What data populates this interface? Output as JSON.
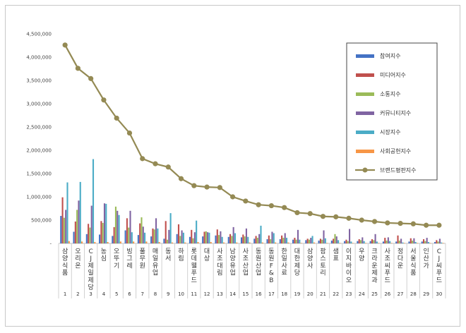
{
  "chart_data": {
    "type": "bar",
    "y_ticks": [
      "-",
      "500,000",
      "1,000,000",
      "1,500,000",
      "2,000,000",
      "2,500,000",
      "3,000,000",
      "3,500,000",
      "4,000,000",
      "4,500,000"
    ],
    "ylim": [
      0,
      4500000
    ],
    "legend_position": "right",
    "grid": false,
    "categories": [
      {
        "rank": "1",
        "name": "삼양식품"
      },
      {
        "rank": "2",
        "name": "오리온"
      },
      {
        "rank": "3",
        "name": "CJ제일제당"
      },
      {
        "rank": "4",
        "name": "농심"
      },
      {
        "rank": "5",
        "name": "오뚜기"
      },
      {
        "rank": "6",
        "name": "빙그레"
      },
      {
        "rank": "7",
        "name": "풀무원"
      },
      {
        "rank": "8",
        "name": "매일유업"
      },
      {
        "rank": "9",
        "name": "동서"
      },
      {
        "rank": "10",
        "name": "하림"
      },
      {
        "rank": "11",
        "name": "롯데웰푸드"
      },
      {
        "rank": "12",
        "name": "대상"
      },
      {
        "rank": "13",
        "name": "사조대림"
      },
      {
        "rank": "14",
        "name": "남양유업"
      },
      {
        "rank": "15",
        "name": "사조산업"
      },
      {
        "rank": "16",
        "name": "동원산업"
      },
      {
        "rank": "17",
        "name": "동원F&B"
      },
      {
        "rank": "18",
        "name": "한일사료"
      },
      {
        "rank": "19",
        "name": "대한제당"
      },
      {
        "rank": "20",
        "name": "삼양사"
      },
      {
        "rank": "21",
        "name": "팜스토리"
      },
      {
        "rank": "22",
        "name": "샘표"
      },
      {
        "rank": "23",
        "name": "이지바이오"
      },
      {
        "rank": "24",
        "name": "우양"
      },
      {
        "rank": "25",
        "name": "크라운제과"
      },
      {
        "rank": "26",
        "name": "사조씨푸드"
      },
      {
        "rank": "27",
        "name": "정다운"
      },
      {
        "rank": "28",
        "name": "서울식품"
      },
      {
        "rank": "29",
        "name": "인산가"
      },
      {
        "rank": "30",
        "name": "CJ씨푸드"
      }
    ],
    "series": [
      {
        "name": "참여지수",
        "color": "#4472c4",
        "values": [
          590000,
          250000,
          200000,
          190000,
          160000,
          280000,
          180000,
          150000,
          100000,
          200000,
          140000,
          150000,
          170000,
          140000,
          130000,
          100000,
          90000,
          90000,
          80000,
          70000,
          60000,
          60000,
          50000,
          50000,
          50000,
          40000,
          40000,
          40000,
          40000,
          30000
        ]
      },
      {
        "name": "미디어지수",
        "color": "#c0504d",
        "values": [
          990000,
          470000,
          420000,
          480000,
          350000,
          540000,
          430000,
          320000,
          480000,
          410000,
          290000,
          250000,
          300000,
          200000,
          190000,
          160000,
          170000,
          170000,
          120000,
          100000,
          100000,
          100000,
          80000,
          90000,
          90000,
          120000,
          170000,
          110000,
          90000,
          70000
        ]
      },
      {
        "name": "소통지수",
        "color": "#9bbb59",
        "values": [
          550000,
          720000,
          340000,
          440000,
          790000,
          340000,
          560000,
          300000,
          80000,
          160000,
          110000,
          260000,
          180000,
          160000,
          150000,
          120000,
          90000,
          120000,
          80000,
          80000,
          80000,
          200000,
          50000,
          70000,
          70000,
          60000,
          60000,
          60000,
          50000,
          40000
        ]
      },
      {
        "name": "커뮤니티지수",
        "color": "#8064a2",
        "values": [
          720000,
          920000,
          810000,
          860000,
          700000,
          700000,
          360000,
          540000,
          290000,
          280000,
          240000,
          240000,
          260000,
          350000,
          320000,
          200000,
          250000,
          220000,
          290000,
          120000,
          280000,
          150000,
          310000,
          130000,
          200000,
          130000,
          100000,
          110000,
          120000,
          100000
        ]
      },
      {
        "name": "시장지수",
        "color": "#4bacc6",
        "values": [
          1310000,
          1320000,
          1810000,
          850000,
          610000,
          240000,
          230000,
          320000,
          650000,
          230000,
          490000,
          230000,
          140000,
          220000,
          140000,
          380000,
          220000,
          120000,
          80000,
          160000,
          110000,
          70000,
          40000,
          50000,
          40000,
          50000,
          20000,
          30000,
          30000,
          20000
        ]
      },
      {
        "name": "사회공헌지수",
        "color": "#f79646",
        "values": [
          50000,
          40000,
          30000,
          30000,
          40000,
          40000,
          40000,
          30000,
          20000,
          20000,
          30000,
          30000,
          20000,
          20000,
          20000,
          20000,
          20000,
          20000,
          10000,
          20000,
          10000,
          10000,
          10000,
          10000,
          10000,
          10000,
          10000,
          10000,
          10000,
          10000
        ]
      },
      {
        "name": "브랜드평판지수",
        "color": "#948a54",
        "type": "line",
        "values": [
          4260000,
          3760000,
          3540000,
          3080000,
          2690000,
          2370000,
          1820000,
          1710000,
          1640000,
          1390000,
          1240000,
          1210000,
          1200000,
          1000000,
          910000,
          830000,
          810000,
          770000,
          660000,
          640000,
          580000,
          570000,
          540000,
          500000,
          470000,
          440000,
          430000,
          420000,
          390000,
          390000
        ]
      }
    ]
  }
}
